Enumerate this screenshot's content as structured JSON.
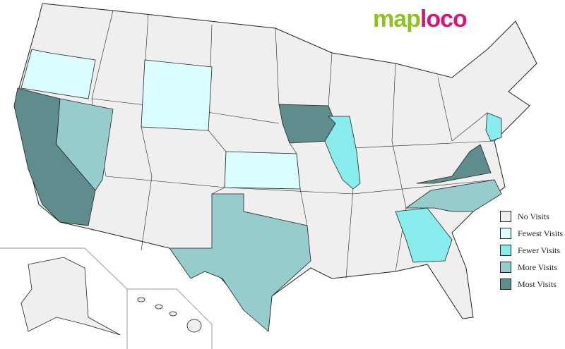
{
  "logo": {
    "part1": "map",
    "part2": "loco"
  },
  "legend": [
    {
      "label": "No Visits",
      "color": "#efefef"
    },
    {
      "label": "Fewest Visits",
      "color": "#dcfdfd"
    },
    {
      "label": "Fewer Visits",
      "color": "#88ecec"
    },
    {
      "label": "More Visits",
      "color": "#96cccc"
    },
    {
      "label": "Most Visits",
      "color": "#5f8c8c"
    }
  ],
  "states": [
    {
      "name": "Oregon",
      "level": "Fewest Visits"
    },
    {
      "name": "Wyoming",
      "level": "Fewest Visits"
    },
    {
      "name": "Kansas",
      "level": "Fewest Visits"
    },
    {
      "name": "Illinois",
      "level": "Fewer Visits"
    },
    {
      "name": "New Jersey",
      "level": "Fewer Visits"
    },
    {
      "name": "Georgia",
      "level": "Fewer Visits"
    },
    {
      "name": "Nevada",
      "level": "More Visits"
    },
    {
      "name": "Texas",
      "level": "More Visits"
    },
    {
      "name": "North Carolina",
      "level": "More Visits"
    },
    {
      "name": "California",
      "level": "Most Visits"
    },
    {
      "name": "Iowa",
      "level": "Most Visits"
    },
    {
      "name": "Virginia",
      "level": "Most Visits"
    }
  ]
}
